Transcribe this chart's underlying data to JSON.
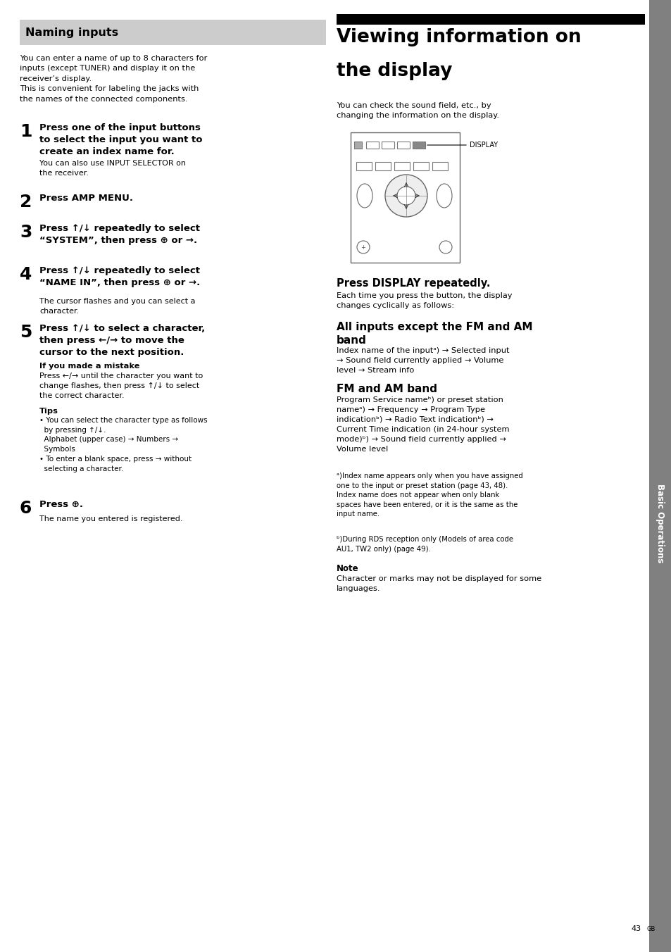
{
  "page_bg": "#ffffff",
  "sidebar_bg": "#808080",
  "sidebar_text_color": "#ffffff",
  "sidebar_label": "Basic Operations",
  "black_bar_color": "#000000",
  "naming_inputs_bg": "#cccccc",
  "naming_inputs_title": "Naming inputs",
  "main_title_line1": "Viewing information on",
  "main_title_line2": "the display",
  "intro_text_left": "You can enter a name of up to 8 characters for\ninputs (except TUNER) and display it on the\nreceiver’s display.\nThis is convenient for labeling the jacks with\nthe names of the connected components.",
  "intro_text_right": "You can check the sound field, etc., by\nchanging the information on the display.",
  "step1_num": "1",
  "step1_bold": "Press one of the input buttons\nto select the input you want to\ncreate an index name for.",
  "step1_sub": "You can also use INPUT SELECTOR on\nthe receiver.",
  "step2_num": "2",
  "step2_bold": "Press AMP MENU.",
  "step3_num": "3",
  "step3_bold": "Press ↑/↓ repeatedly to select\n“SYSTEM”, then press ⊕ or →.",
  "step4_num": "4",
  "step4_bold": "Press ↑/↓ repeatedly to select\n“NAME IN”, then press ⊕ or →.",
  "step4_sub": "The cursor flashes and you can select a\ncharacter.",
  "step5_num": "5",
  "step5_bold": "Press ↑/↓ to select a character,\nthen press ←/→ to move the\ncursor to the next position.",
  "step5_mistake_title": "If you made a mistake",
  "step5_mistake_text": "Press ←/→ until the character you want to\nchange flashes, then press ↑/↓ to select\nthe correct character.",
  "tips_title": "Tips",
  "tip1": "• You can select the character type as follows\n  by pressing ↑/↓.\n  Alphabet (upper case) → Numbers →\n  Symbols",
  "tip2": "• To enter a blank space, press → without\n  selecting a character.",
  "step6_num": "6",
  "step6_bold": "Press ⊕.",
  "step6_sub": "The name you entered is registered.",
  "press_display_title": "Press DISPLAY repeatedly.",
  "press_display_text": "Each time you press the button, the display\nchanges cyclically as follows:",
  "all_inputs_title": "All inputs except the FM and AM\nband",
  "all_inputs_text": "Index name of the inputᵃ) → Selected input\n→ Sound field currently applied → Volume\nlevel → Stream info",
  "fm_am_title": "FM and AM band",
  "fm_am_text": "Program Service nameᵇ) or preset station\nnameᵃ) → Frequency → Program Type\nindicationᵇ) → Radio Text indicationᵇ) →\nCurrent Time indication (in 24-hour system\nmode)ᵇ) → Sound field currently applied →\nVolume level",
  "footnote_a": "ᵃ)Index name appears only when you have assigned\none to the input or preset station (page 43, 48).\nIndex name does not appear when only blank\nspaces have been entered, or it is the same as the\ninput name.",
  "footnote_b": "ᵇ)During RDS reception only (Models of area code\nAU1, TW2 only) (page 49).",
  "note_title": "Note",
  "note_text": "Character or marks may not be displayed for some\nlanguages.",
  "page_number": "43"
}
